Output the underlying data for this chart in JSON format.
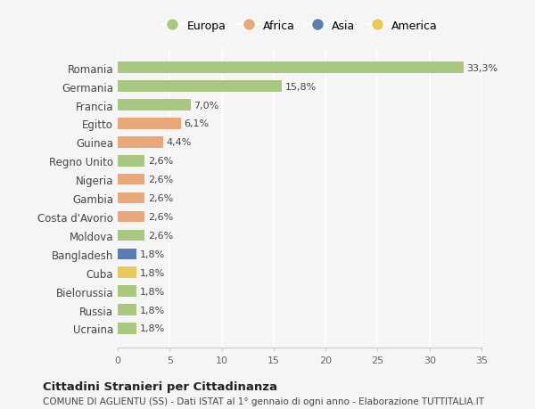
{
  "categories": [
    "Romania",
    "Germania",
    "Francia",
    "Egitto",
    "Guinea",
    "Regno Unito",
    "Nigeria",
    "Gambia",
    "Costa d'Avorio",
    "Moldova",
    "Bangladesh",
    "Cuba",
    "Bielorussia",
    "Russia",
    "Ucraina"
  ],
  "values": [
    33.3,
    15.8,
    7.0,
    6.1,
    4.4,
    2.6,
    2.6,
    2.6,
    2.6,
    2.6,
    1.8,
    1.8,
    1.8,
    1.8,
    1.8
  ],
  "labels": [
    "33,3%",
    "15,8%",
    "7,0%",
    "6,1%",
    "4,4%",
    "2,6%",
    "2,6%",
    "2,6%",
    "2,6%",
    "2,6%",
    "1,8%",
    "1,8%",
    "1,8%",
    "1,8%",
    "1,8%"
  ],
  "colors": [
    "#a8c880",
    "#a8c880",
    "#a8c880",
    "#e8a87c",
    "#e8a87c",
    "#a8c880",
    "#e8a87c",
    "#e8a87c",
    "#e8a87c",
    "#a8c880",
    "#5b7db1",
    "#e8c85a",
    "#a8c880",
    "#a8c880",
    "#a8c880"
  ],
  "continent_colors": {
    "Europa": "#a8c880",
    "Africa": "#e8a87c",
    "Asia": "#5b7db1",
    "America": "#e8c85a"
  },
  "background_color": "#f5f5f5",
  "title": "Cittadini Stranieri per Cittadinanza",
  "subtitle": "COMUNE DI AGLIENTU (SS) - Dati ISTAT al 1° gennaio di ogni anno - Elaborazione TUTTITALIA.IT",
  "xlim": [
    0,
    35
  ],
  "xticks": [
    0,
    5,
    10,
    15,
    20,
    25,
    30,
    35
  ]
}
